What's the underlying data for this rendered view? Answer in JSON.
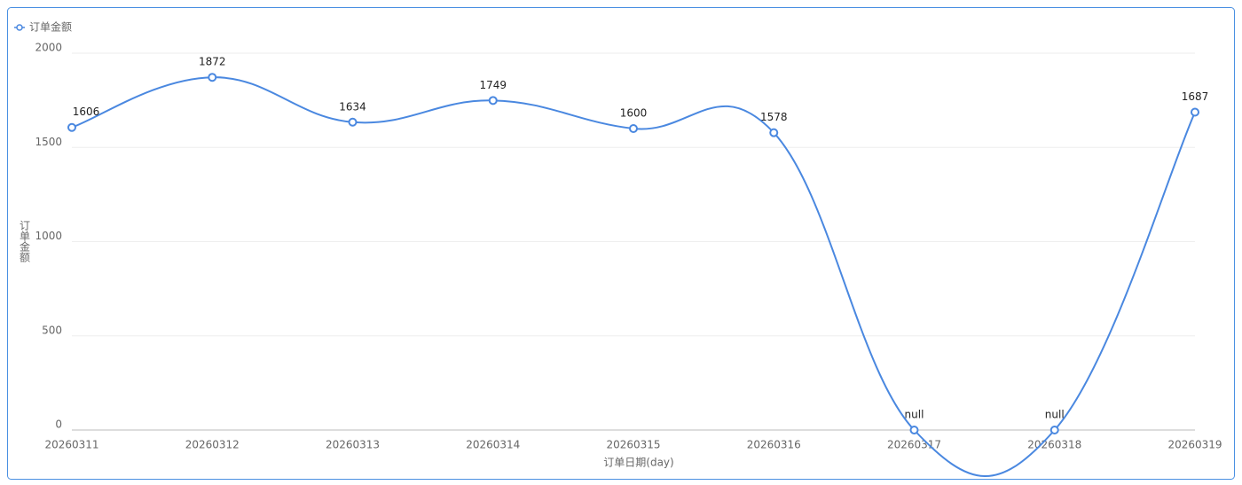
{
  "chart_data": {
    "type": "line",
    "x_label": "订单日期(day)",
    "y_label": "订单金额",
    "categories": [
      "20260311",
      "20260312",
      "20260313",
      "20260314",
      "20260315",
      "20260316",
      "20260317",
      "20260318",
      "20260319"
    ],
    "series": [
      {
        "name": "订单金额",
        "color": "#4a88e0",
        "values": [
          1606,
          1872,
          1634,
          1749,
          1600,
          1578,
          0,
          0,
          1687
        ],
        "value_labels": [
          "1606",
          "1872",
          "1634",
          "1749",
          "1600",
          "1578",
          "null",
          "null",
          "1687"
        ]
      }
    ],
    "ylim": [
      0,
      2000
    ],
    "yticks": [
      0,
      500,
      1000,
      1500,
      2000
    ],
    "grid": true,
    "legend": "top-left",
    "smooth": true
  }
}
